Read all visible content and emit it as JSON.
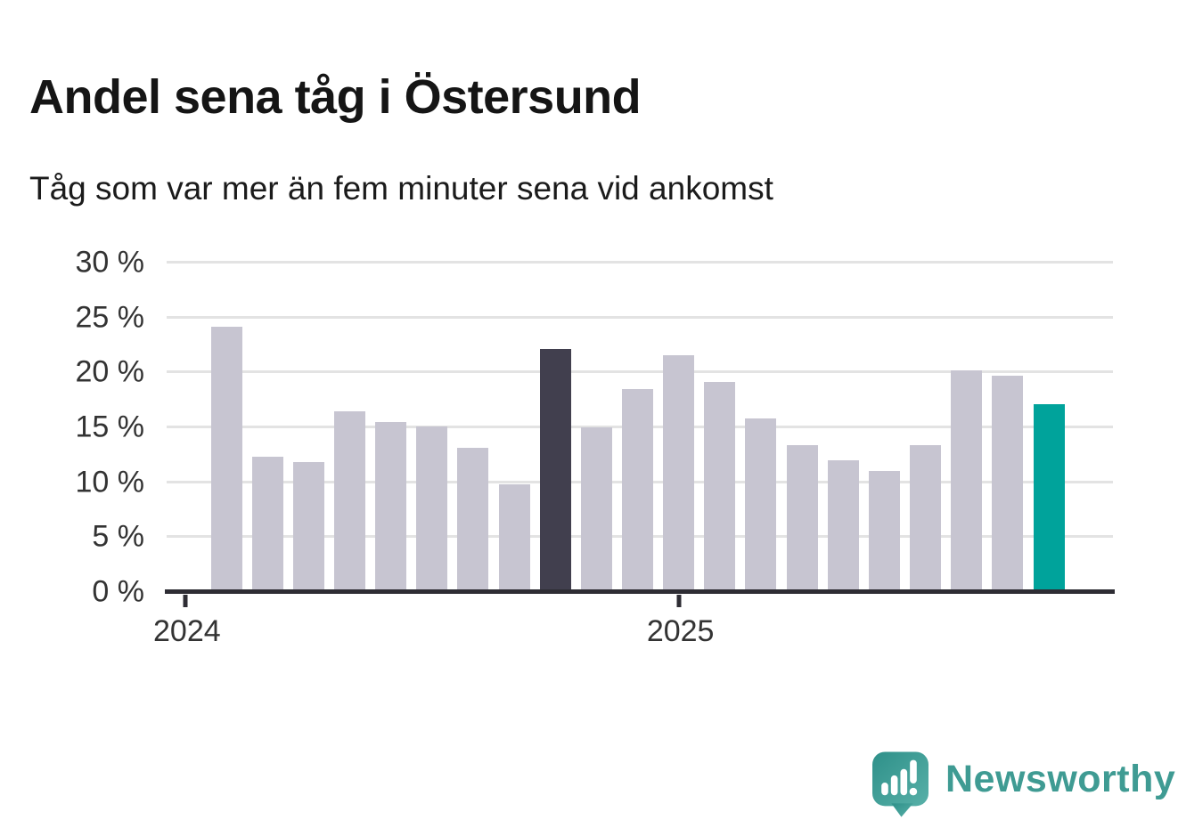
{
  "header": {
    "title": "Andel sena tåg i Östersund",
    "subtitle": "Tåg som var mer än fem minuter sena vid ankomst"
  },
  "chart_data": {
    "type": "bar",
    "title": "Andel sena tåg i Östersund",
    "subtitle": "Tåg som var mer än fem minuter sena vid ankomst",
    "unit": "%",
    "categories": [
      "2024-02",
      "2024-03",
      "2024-04",
      "2024-05",
      "2024-06",
      "2024-07",
      "2024-08",
      "2024-09",
      "2024-10",
      "2024-11",
      "2024-12",
      "2025-01",
      "2025-02",
      "2025-03",
      "2025-04",
      "2025-05",
      "2025-06",
      "2025-07",
      "2025-08",
      "2025-09",
      "2025-10"
    ],
    "values": [
      24.2,
      12.3,
      11.8,
      16.5,
      15.5,
      15.1,
      13.1,
      9.8,
      22.1,
      15.0,
      18.5,
      21.6,
      19.1,
      15.8,
      13.4,
      12.0,
      11.0,
      13.4,
      20.2,
      19.7,
      17.1
    ],
    "highlights": {
      "dark_index": 8,
      "accent_index": 20
    },
    "ylim": [
      0,
      30
    ],
    "y_ticks": [
      {
        "value": 0,
        "label": "0 %"
      },
      {
        "value": 5,
        "label": "5 %"
      },
      {
        "value": 10,
        "label": "10 %"
      },
      {
        "value": 15,
        "label": "15 %"
      },
      {
        "value": 20,
        "label": "20 %"
      },
      {
        "value": 25,
        "label": "25 %"
      },
      {
        "value": 30,
        "label": "30 %"
      }
    ],
    "x_ticks": [
      {
        "label": "2024",
        "month_index": -1
      },
      {
        "label": "2025",
        "month_index": 11
      }
    ],
    "grid": "horizontal",
    "legend": "none",
    "colors": {
      "bar_default": "#c7c5d1",
      "bar_dark": "#413f4e",
      "bar_accent": "#00a39b",
      "gridline": "#e3e3e3",
      "axis": "#2e2d34",
      "tick_text": "#333333"
    }
  },
  "footer": {
    "brand": "Newsworthy",
    "logo_icon": "newsworthy-speech-bubble-chart-icon",
    "brand_color": "#3f9b93"
  }
}
